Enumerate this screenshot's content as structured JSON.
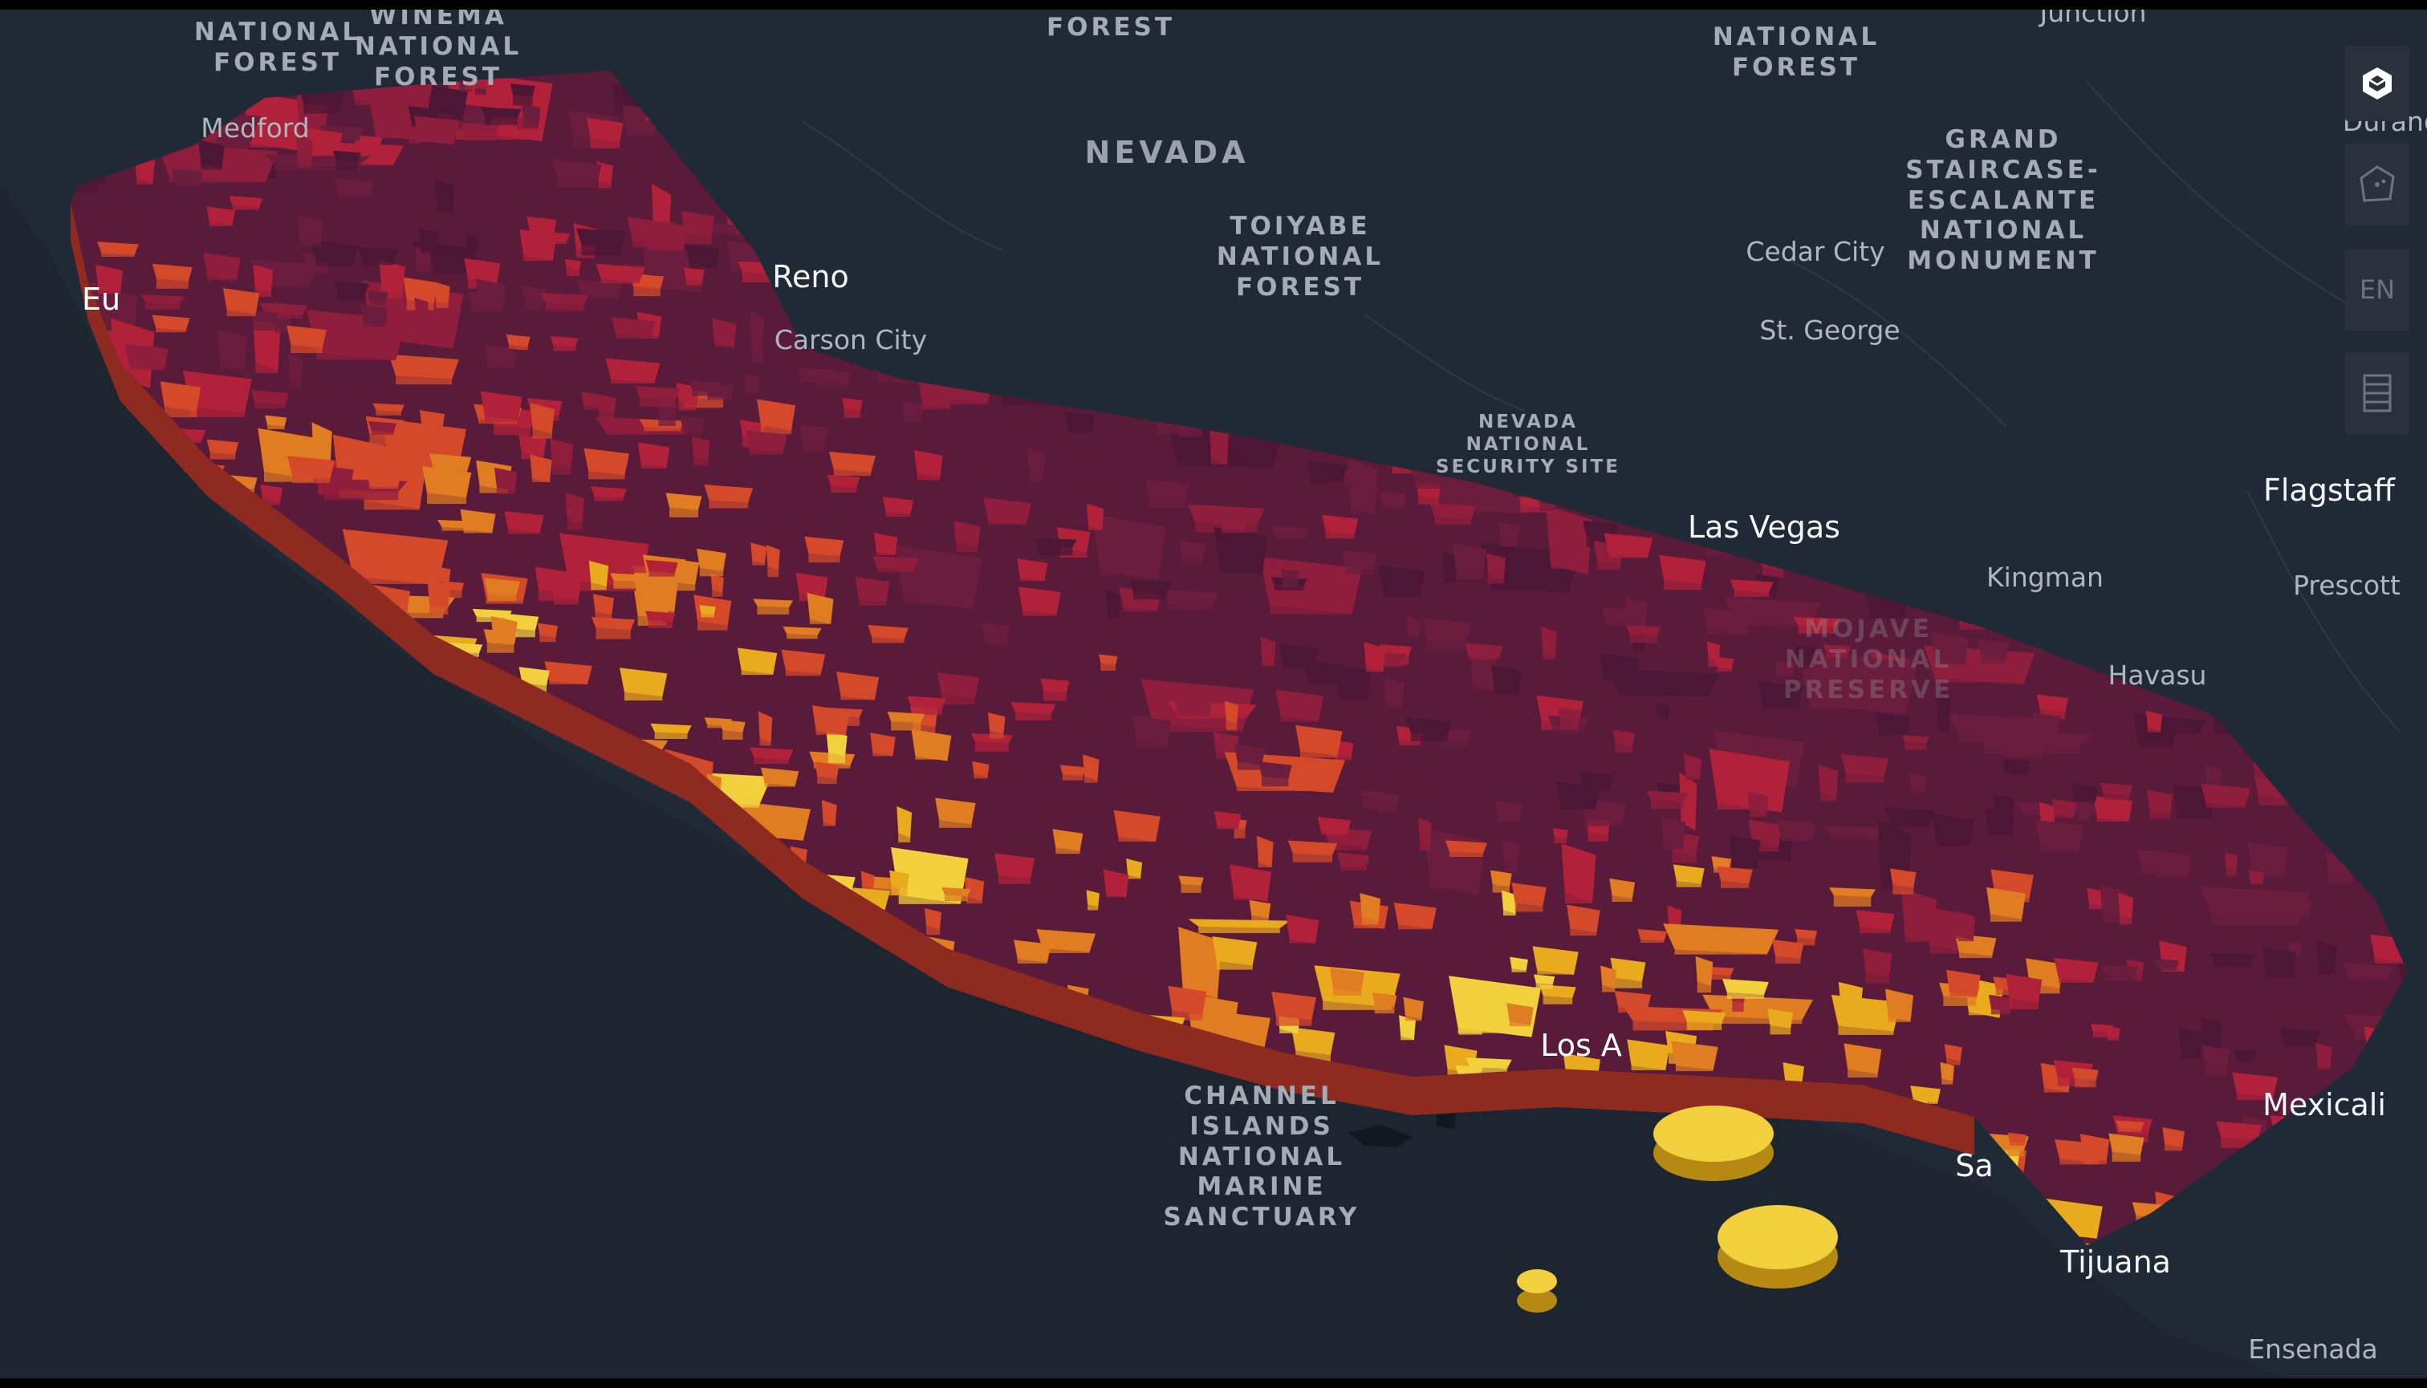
{
  "labels": {
    "regions": [
      {
        "name": "nevada-label",
        "text": "NEVADA",
        "cls": "region"
      }
    ],
    "parks": [
      {
        "name": "label-national-forest-1",
        "text": "NATIONAL\nFOREST",
        "cls": "park"
      },
      {
        "name": "label-winema-national-forest",
        "text": "WINEMA\nNATIONAL\nFOREST",
        "cls": "park"
      },
      {
        "name": "label-forest-top",
        "text": "FOREST",
        "cls": "park"
      },
      {
        "name": "label-national-forest-2",
        "text": "NATIONAL\nFOREST",
        "cls": "park"
      },
      {
        "name": "label-grand-staircase",
        "text": "GRAND\nSTAIRCASE-\nESCALANTE\nNATIONAL\nMONUMENT",
        "cls": "park"
      },
      {
        "name": "label-toiyabe",
        "text": "TOIYABE\nNATIONAL\nFOREST",
        "cls": "park"
      },
      {
        "name": "label-nevada-security-site",
        "text": "NEVADA\nNATIONAL\nSECURITY SITE",
        "cls": "site"
      },
      {
        "name": "label-mojave",
        "text": "MOJAVE\nNATIONAL\nPRESERVE",
        "cls": "park faded"
      },
      {
        "name": "label-channel-islands",
        "text": "CHANNEL\nISLANDS\nNATIONAL\nMARINE\nSANCTUARY",
        "cls": "park"
      }
    ],
    "cities": [
      {
        "name": "label-junction",
        "text": "Junction",
        "cls": "city"
      },
      {
        "name": "label-durango",
        "text": "Durango",
        "cls": "city"
      },
      {
        "name": "label-medford",
        "text": "Medford",
        "cls": "city"
      },
      {
        "name": "label-eureka",
        "text": "Eu",
        "cls": "city-major on-map"
      },
      {
        "name": "label-reno",
        "text": "Reno",
        "cls": "city-major"
      },
      {
        "name": "label-carson-city",
        "text": "Carson City",
        "cls": "city"
      },
      {
        "name": "label-cedar-city",
        "text": "Cedar City",
        "cls": "city"
      },
      {
        "name": "label-st-george",
        "text": "St. George",
        "cls": "city"
      },
      {
        "name": "label-las-vegas",
        "text": "Las Vegas",
        "cls": "city-major"
      },
      {
        "name": "label-flagstaff",
        "text": "Flagstaff",
        "cls": "city-major"
      },
      {
        "name": "label-kingman",
        "text": "Kingman",
        "cls": "city"
      },
      {
        "name": "label-prescott",
        "text": "Prescott",
        "cls": "city"
      },
      {
        "name": "label-lake-havasu",
        "text": "Havasu",
        "cls": "city"
      },
      {
        "name": "label-los-angeles",
        "text": "Los A",
        "cls": "city-major on-map"
      },
      {
        "name": "label-san-diego",
        "text": "Sa",
        "cls": "city-major on-map"
      },
      {
        "name": "label-mexicali",
        "text": "Mexicali",
        "cls": "city-major"
      },
      {
        "name": "label-tijuana",
        "text": "Tijuana",
        "cls": "city-major"
      },
      {
        "name": "label-ensenada",
        "text": "Ensenada",
        "cls": "city"
      }
    ]
  },
  "controls": [
    {
      "name": "map-logo-button",
      "icon": "layers-logo-icon",
      "text": ""
    },
    {
      "name": "draw-polygon-button",
      "icon": "draw-polygon-icon",
      "text": ""
    },
    {
      "name": "locale-button",
      "icon": "",
      "text": "EN"
    },
    {
      "name": "legend-button",
      "icon": "legend-list-icon",
      "text": ""
    }
  ],
  "colors": {
    "background": "#1d2530",
    "water": "#19232d",
    "land": "#222c38",
    "ramp": [
      "#4c1734",
      "#6b1d3d",
      "#8f1e3c",
      "#b1223a",
      "#d4492a",
      "#e07c22",
      "#eaaa1e",
      "#f2cf3c"
    ]
  },
  "choropleth": {
    "layer_type": "3D extruded polygons",
    "value_bins": 8
  }
}
